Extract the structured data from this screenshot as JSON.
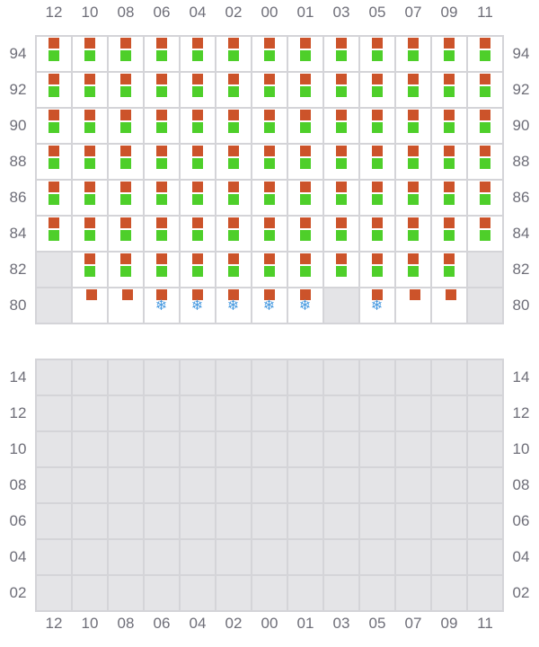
{
  "columns": [
    "12",
    "10",
    "08",
    "06",
    "04",
    "02",
    "00",
    "01",
    "03",
    "05",
    "07",
    "09",
    "11"
  ],
  "upper_section": {
    "rows": [
      {
        "label": "94",
        "cells": [
          "OG",
          "OG",
          "OG",
          "OG",
          "OG",
          "OG",
          "OG",
          "OG",
          "OG",
          "OG",
          "OG",
          "OG",
          "OG"
        ]
      },
      {
        "label": "92",
        "cells": [
          "OG",
          "OG",
          "OG",
          "OG",
          "OG",
          "OG",
          "OG",
          "OG",
          "OG",
          "OG",
          "OG",
          "OG",
          "OG"
        ]
      },
      {
        "label": "90",
        "cells": [
          "OG",
          "OG",
          "OG",
          "OG",
          "OG",
          "OG",
          "OG",
          "OG",
          "OG",
          "OG",
          "OG",
          "OG",
          "OG"
        ]
      },
      {
        "label": "88",
        "cells": [
          "OG",
          "OG",
          "OG",
          "OG",
          "OG",
          "OG",
          "OG",
          "OG",
          "OG",
          "OG",
          "OG",
          "OG",
          "OG"
        ]
      },
      {
        "label": "86",
        "cells": [
          "OG",
          "OG",
          "OG",
          "OG",
          "OG",
          "OG",
          "OG",
          "OG",
          "OG",
          "OG",
          "OG",
          "OG",
          "OG"
        ]
      },
      {
        "label": "84",
        "cells": [
          "OG",
          "OG",
          "OG",
          "OG",
          "OG",
          "OG",
          "OG",
          "OG",
          "OG",
          "OG",
          "OG",
          "OG",
          "OG"
        ]
      },
      {
        "label": "82",
        "cells": [
          "X",
          "OG",
          "OG",
          "OG",
          "OG",
          "OG",
          "OG",
          "OG",
          "OG",
          "OG",
          "OG",
          "OG",
          "X"
        ]
      },
      {
        "label": "80",
        "cells": [
          "X",
          "O",
          "O",
          "OS",
          "OS",
          "OS",
          "OS",
          "OS",
          "X",
          "OS",
          "O",
          "O",
          "X"
        ]
      }
    ]
  },
  "lower_section": {
    "rows": [
      {
        "label": "14"
      },
      {
        "label": "12"
      },
      {
        "label": "10"
      },
      {
        "label": "08"
      },
      {
        "label": "06"
      },
      {
        "label": "04"
      },
      {
        "label": "02"
      }
    ]
  },
  "legend_codes": {
    "O": "orange-marker",
    "G": "green-marker",
    "S": "snowflake-icon",
    "X": "unavailable"
  },
  "colors": {
    "orange": "#cc532a",
    "green": "#4ecf2a",
    "snowflake": "#4a9be0",
    "unavailable": "#e4e4e7",
    "grid": "#d4d4d8"
  },
  "snow_glyph": "❄"
}
